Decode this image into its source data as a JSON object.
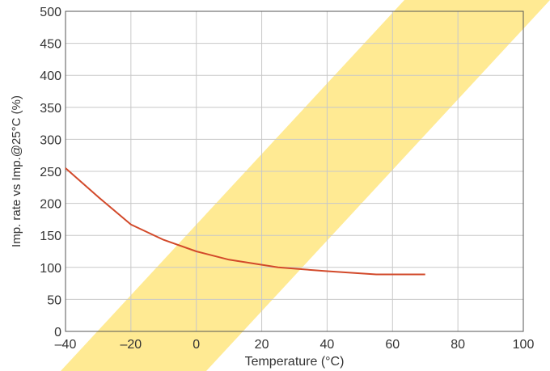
{
  "chart_data": {
    "type": "line",
    "xlabel": "Temperature (°C)",
    "ylabel": "Imp. rate vs Imp.@25°C (%)",
    "xlim": [
      -40,
      100
    ],
    "ylim": [
      0,
      500
    ],
    "xticks": [
      -40,
      -20,
      0,
      20,
      40,
      60,
      80,
      100
    ],
    "yticks": [
      0,
      50,
      100,
      150,
      200,
      250,
      300,
      350,
      400,
      450,
      500
    ],
    "xtick_labels": [
      "–40",
      "–20",
      "0",
      "20",
      "40",
      "60",
      "80",
      "100"
    ],
    "ytick_labels": [
      "0",
      "50",
      "100",
      "150",
      "200",
      "250",
      "300",
      "350",
      "400",
      "450",
      "500"
    ],
    "grid": true,
    "series": [
      {
        "x": [
          -40,
          -30,
          -20,
          -10,
          0,
          10,
          25,
          40,
          55,
          70
        ],
        "values": [
          255,
          210,
          167,
          143,
          125,
          112,
          100,
          94,
          89,
          89
        ]
      }
    ],
    "colors": {
      "line": "#d2492a",
      "grid": "#c8c8c8",
      "axis": "#555555",
      "watermark": "#ffe680"
    }
  }
}
